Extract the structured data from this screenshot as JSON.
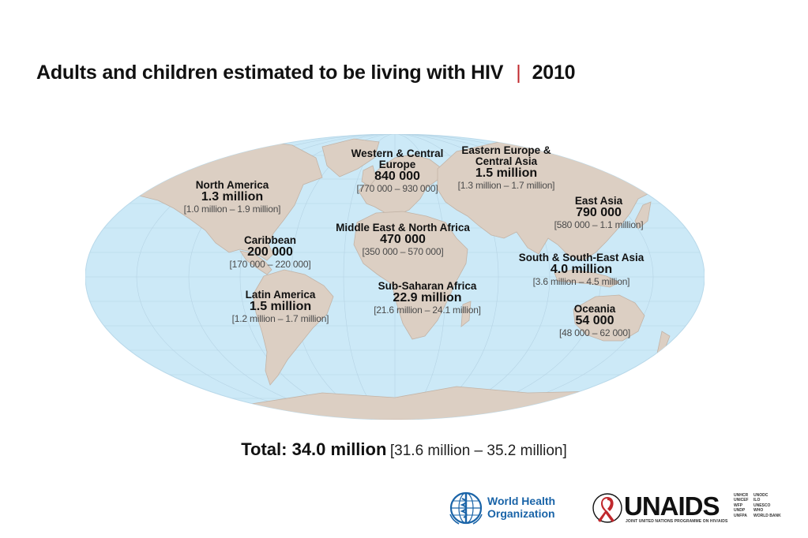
{
  "title": {
    "text": "Adults and children estimated to be living with HIV",
    "separator": "|",
    "year": "2010",
    "separator_color": "#c0282d"
  },
  "map": {
    "ocean_color": "#cce9f7",
    "land_color": "#dccfc3",
    "regions": [
      {
        "name": "North America",
        "value": "1.3 million",
        "range": "[1.0 million – 1.9 million]"
      },
      {
        "name": "Caribbean",
        "value": "200 000",
        "range": "[170 000 – 220 000]"
      },
      {
        "name": "Latin America",
        "value": "1.5 million",
        "range": "[1.2 million – 1.7 million]"
      },
      {
        "name": "Western & Central Europe",
        "value": "840 000",
        "range": "[770 000 – 930 000]"
      },
      {
        "name": "Middle East & North Africa",
        "value": "470 000",
        "range": "[350 000 – 570 000]"
      },
      {
        "name": "Sub-Saharan Africa",
        "value": "22.9 million",
        "range": "[21.6 million – 24.1 million]"
      },
      {
        "name": "Eastern Europe & Central Asia",
        "value": "1.5 million",
        "range": "[1.3 million – 1.7 million]"
      },
      {
        "name": "East Asia",
        "value": "790 000",
        "range": "[580 000 – 1.1 million]"
      },
      {
        "name": "South & South-East Asia",
        "value": "4.0 million",
        "range": "[3.6 million – 4.5 million]"
      },
      {
        "name": "Oceania",
        "value": "54 000",
        "range": "[48 000 – 62 000]"
      }
    ]
  },
  "total": {
    "label": "Total: 34.0 million",
    "range": "[31.6 million – 35.2 million]"
  },
  "logos": {
    "who": {
      "line1": "World Health",
      "line2": "Organization",
      "color": "#1a64a8"
    },
    "unaids": {
      "name": "UNAIDS",
      "subtitle": "JOINT UNITED NATIONS PROGRAMME ON HIV/AIDS",
      "cosponsors_col1": [
        "UNHCR",
        "UNICEF",
        "WFP",
        "UNDP",
        "UNFPA"
      ],
      "cosponsors_col2": [
        "UNODC",
        "ILO",
        "UNESCO",
        "WHO",
        "WORLD BANK"
      ],
      "ribbon_color": "#c0282d"
    }
  }
}
